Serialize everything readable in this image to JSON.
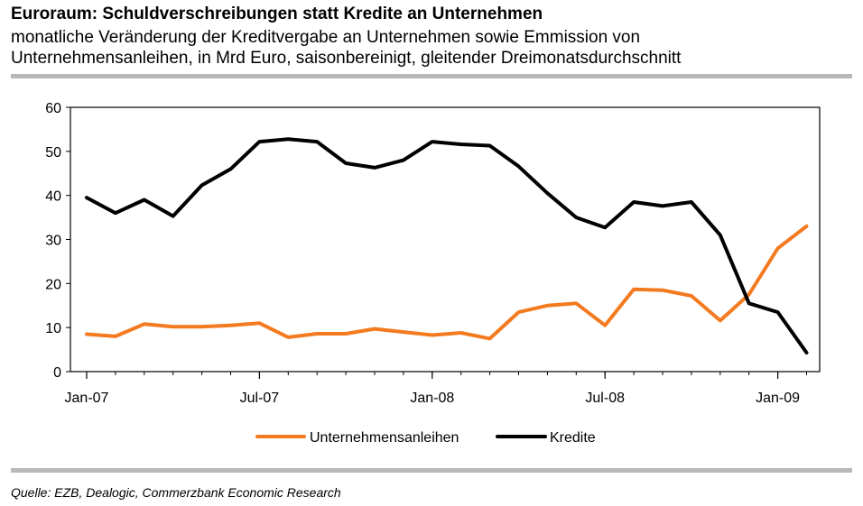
{
  "header": {
    "title": "Euroraum: Schuldverschreibungen statt Kredite an Unternehmen",
    "subtitle_line1": "monatliche Veränderung der Kreditvergabe an Unternehmen sowie Emmission von",
    "subtitle_line2": "Unternehmensanleihen, in Mrd Euro, saisonbereinigt, gleitender Dreimonatsdurchschnitt"
  },
  "footer": {
    "source": "Quelle: EZB, Dealogic, Commerzbank Economic Research"
  },
  "chart_data": {
    "type": "line",
    "title": "Euroraum: Schuldverschreibungen statt Kredite an Unternehmen",
    "x": [
      "Jan-07",
      "Feb-07",
      "Mar-07",
      "Apr-07",
      "May-07",
      "Jun-07",
      "Jul-07",
      "Aug-07",
      "Sep-07",
      "Oct-07",
      "Nov-07",
      "Dec-07",
      "Jan-08",
      "Feb-08",
      "Mar-08",
      "Apr-08",
      "May-08",
      "Jun-08",
      "Jul-08",
      "Aug-08",
      "Sep-08",
      "Oct-08",
      "Nov-08",
      "Dec-08",
      "Jan-09",
      "Feb-09"
    ],
    "tick_labels": [
      "Jan-07",
      "Jul-07",
      "Jan-08",
      "Jul-08",
      "Jan-09"
    ],
    "ylim": [
      0,
      60
    ],
    "yticks": [
      "0",
      "10",
      "20",
      "30",
      "40",
      "50",
      "60"
    ],
    "xlabel": "",
    "ylabel": "",
    "legend_position": "bottom",
    "series": [
      {
        "name": "Unternehmensanleihen",
        "color": "#f47a20",
        "values": [
          8.5,
          8.0,
          10.8,
          10.2,
          10.2,
          10.5,
          11.0,
          7.8,
          8.6,
          8.6,
          9.7,
          9.0,
          8.3,
          8.8,
          7.5,
          13.5,
          15.0,
          15.5,
          10.5,
          18.7,
          18.5,
          17.2,
          11.6,
          17.5,
          28.0,
          33.0
        ]
      },
      {
        "name": "Kredite",
        "color": "#000000",
        "values": [
          39.5,
          36.0,
          39.0,
          35.3,
          42.3,
          46.0,
          52.2,
          52.8,
          52.2,
          47.3,
          46.3,
          48.0,
          52.2,
          51.6,
          51.3,
          46.6,
          40.5,
          35.0,
          32.7,
          38.5,
          37.6,
          38.5,
          31.0,
          15.5,
          13.5,
          4.3
        ]
      }
    ]
  }
}
